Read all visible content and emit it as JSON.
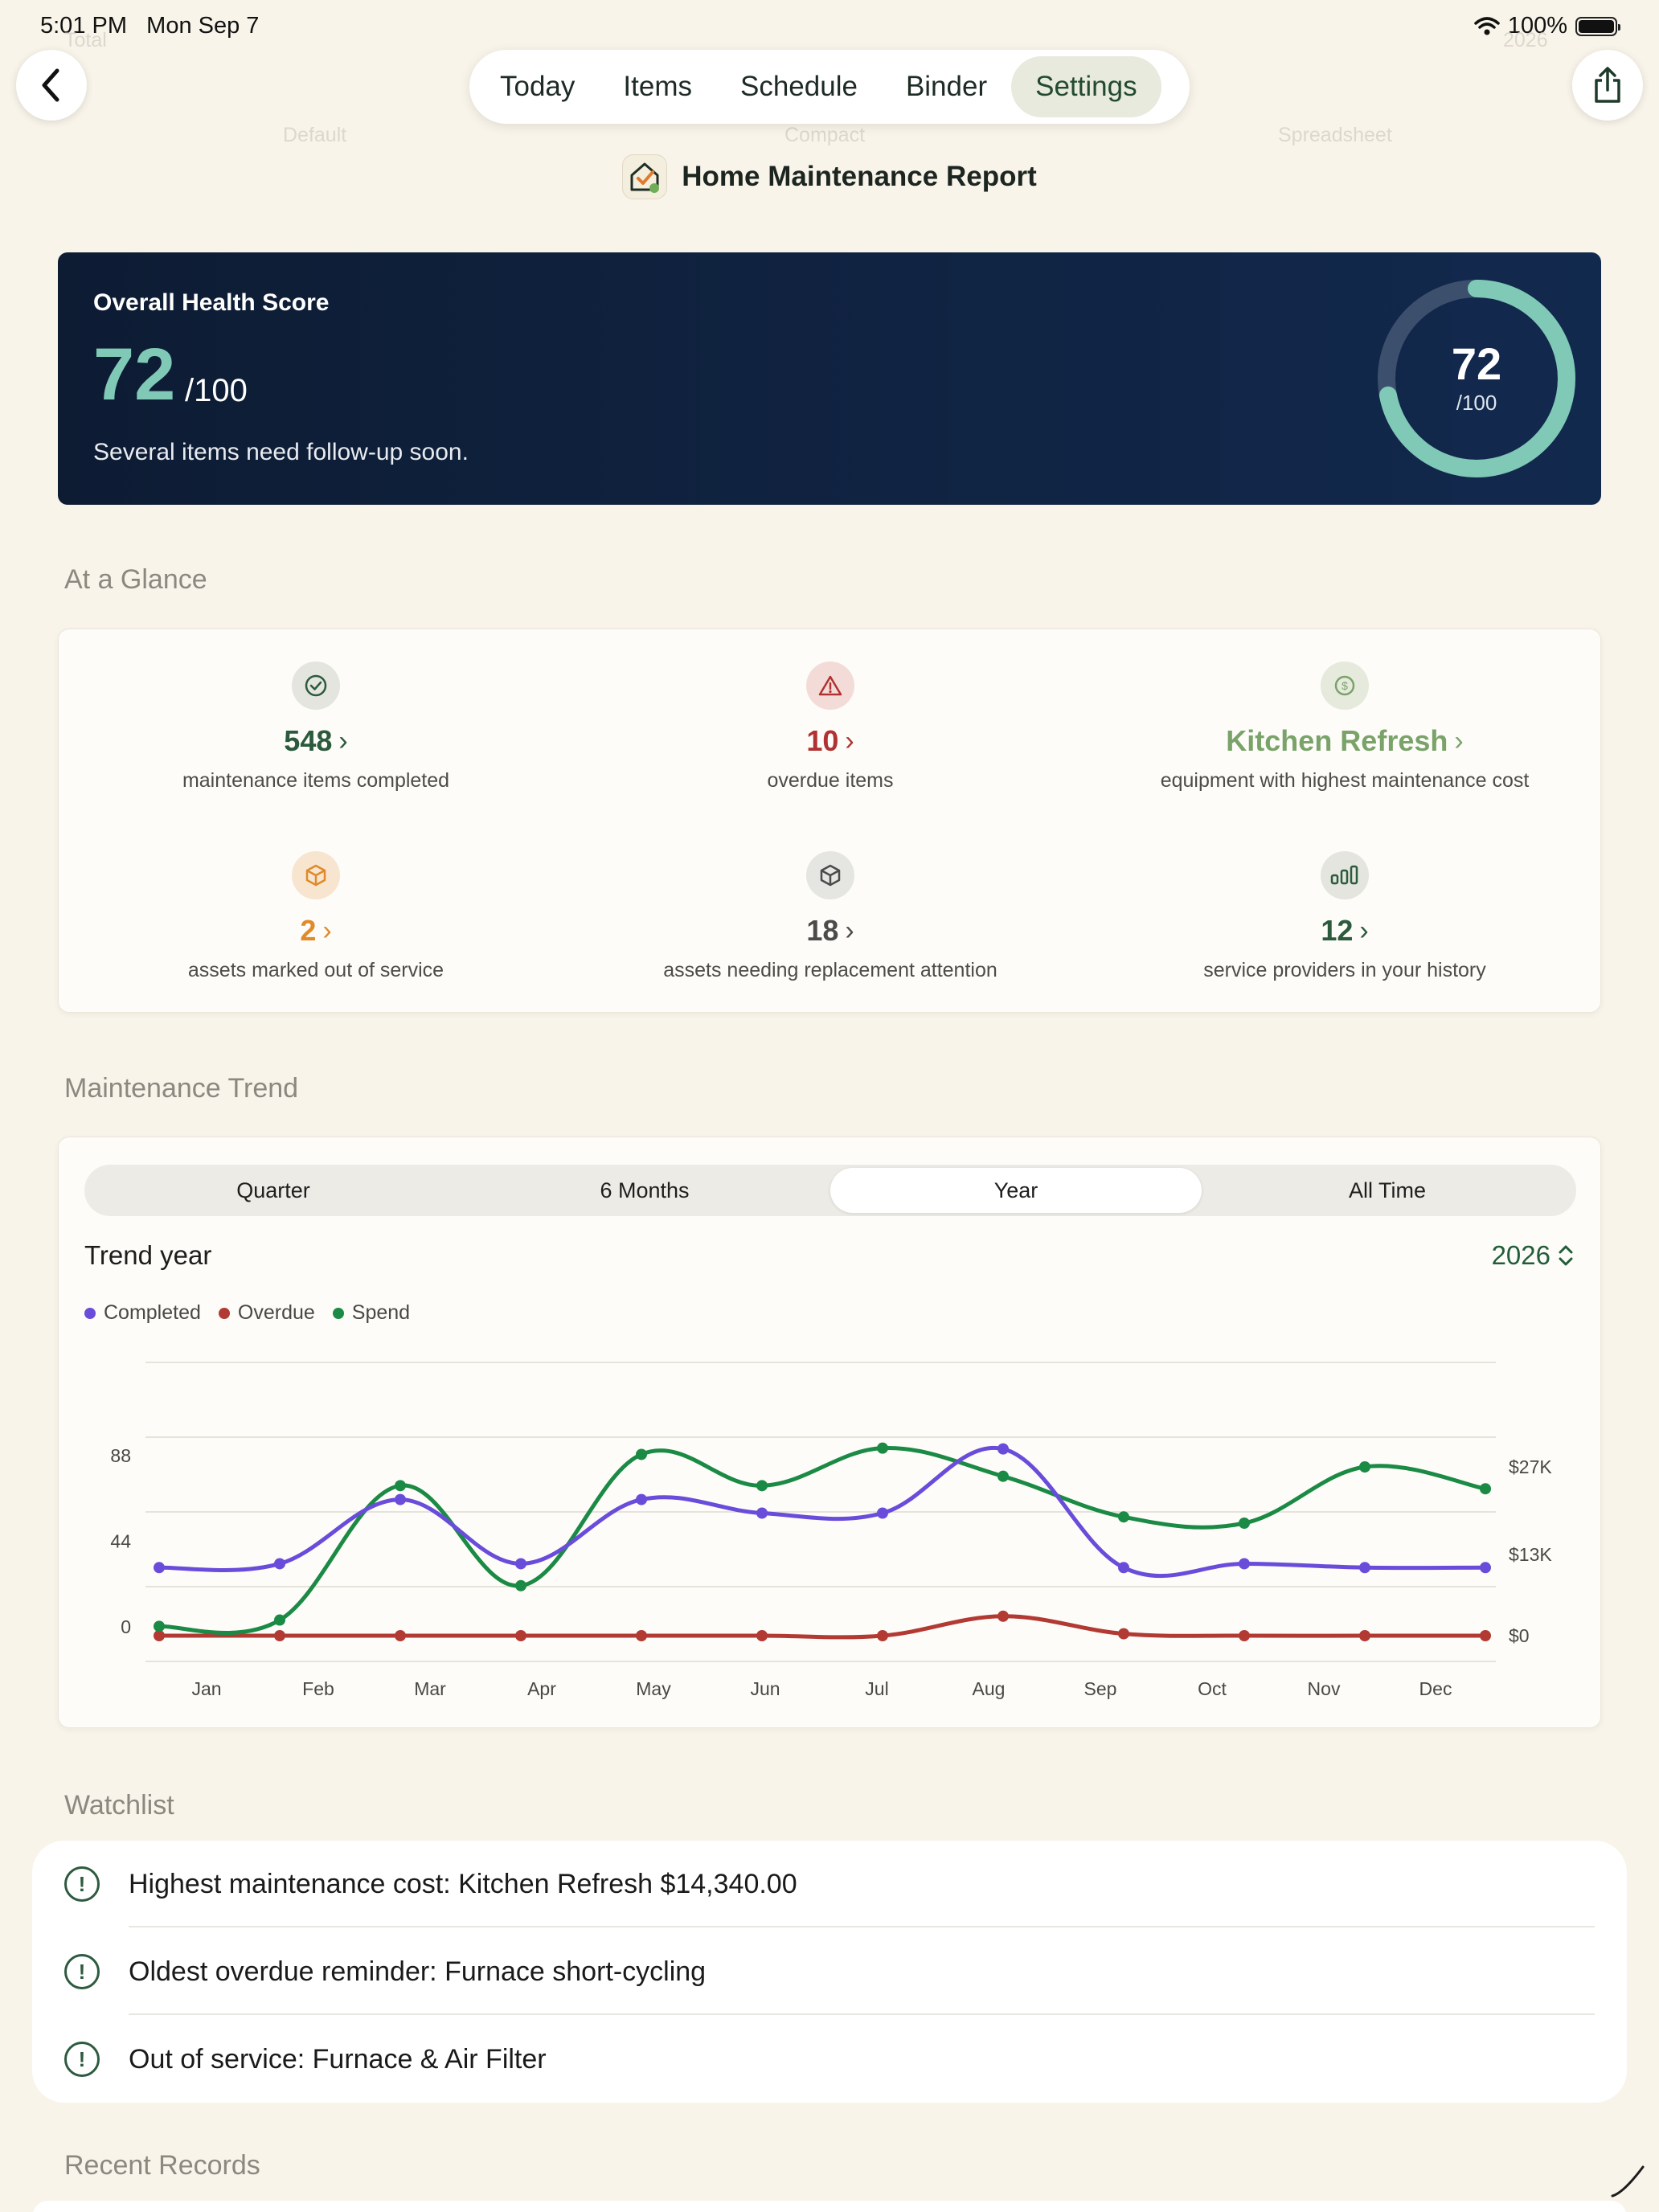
{
  "status_bar": {
    "time": "5:01 PM",
    "date": "Mon Sep 7",
    "battery": "100%"
  },
  "ghost": {
    "left": "Total",
    "right": "2026",
    "opt1": "Default",
    "opt2": "Compact",
    "opt3": "Spreadsheet"
  },
  "nav": {
    "tabs": [
      {
        "label": "Today"
      },
      {
        "label": "Items"
      },
      {
        "label": "Schedule"
      },
      {
        "label": "Binder"
      },
      {
        "label": "Settings"
      }
    ],
    "active_tab": "Settings"
  },
  "report": {
    "title": "Home Maintenance Report"
  },
  "health": {
    "label": "Overall Health Score",
    "score": "72",
    "denominator": "/100",
    "message": "Several items need follow-up soon.",
    "ring_score": "72",
    "ring_denominator": "/100",
    "fraction": 0.72,
    "color": "#7fc9b6"
  },
  "glance": {
    "title": "At a Glance",
    "items": [
      {
        "value": "548",
        "label": "maintenance items completed",
        "icon": "check-circle-icon",
        "color": "#2b5a3c"
      },
      {
        "value": "10",
        "label": "overdue items",
        "icon": "warning-icon",
        "color": "#b03232"
      },
      {
        "value": "Kitchen Refresh",
        "label": "equipment with highest maintenance cost",
        "icon": "dollar-icon",
        "color": "#7aa36a"
      },
      {
        "value": "2",
        "label": "assets marked out of service",
        "icon": "box-icon",
        "color": "#e08a2a"
      },
      {
        "value": "18",
        "label": "assets needing replacement attention",
        "icon": "box-icon",
        "color": "#4b4b4b"
      },
      {
        "value": "12",
        "label": "service providers in your history",
        "icon": "bar-chart-icon",
        "color": "#2b5a3c"
      }
    ]
  },
  "trend": {
    "title": "Maintenance Trend",
    "segments": [
      "Quarter",
      "6 Months",
      "Year",
      "All Time"
    ],
    "active_segment": "Year",
    "trend_label": "Trend year",
    "year": "2026"
  },
  "chart_data": {
    "type": "line",
    "categories": [
      "Jan",
      "Feb",
      "Mar",
      "Apr",
      "May",
      "Jun",
      "Jul",
      "Aug",
      "Sep",
      "Oct",
      "Nov",
      "Dec"
    ],
    "y_left": {
      "ticks": [
        "88",
        "44",
        "0"
      ],
      "range": [
        0,
        88
      ]
    },
    "y_right": {
      "ticks": [
        "$27K",
        "$13K",
        "$0"
      ],
      "range": [
        0,
        27000
      ]
    },
    "grid": true,
    "legend": "top-left",
    "series": [
      {
        "name": "Completed",
        "axis": "left",
        "color": "#6a4cdb",
        "values": [
          35,
          37,
          70,
          37,
          70,
          63,
          63,
          96,
          35,
          37,
          35,
          35
        ]
      },
      {
        "name": "Overdue",
        "axis": "left",
        "color": "#b23a33",
        "values": [
          0,
          0,
          0,
          0,
          0,
          0,
          0,
          10,
          1,
          0,
          0,
          0
        ]
      },
      {
        "name": "Spend",
        "axis": "right",
        "color": "#1b8a45",
        "values": [
          1500,
          2500,
          24000,
          8000,
          29000,
          24000,
          30000,
          25500,
          19000,
          18000,
          27000,
          23500
        ]
      }
    ]
  },
  "watchlist": {
    "title": "Watchlist",
    "items": [
      {
        "text": "Highest maintenance cost: Kitchen Refresh $14,340.00"
      },
      {
        "text": "Oldest overdue reminder: Furnace short-cycling"
      },
      {
        "text": "Out of service: Furnace & Air Filter"
      }
    ]
  },
  "recent": {
    "title": "Recent Records"
  }
}
